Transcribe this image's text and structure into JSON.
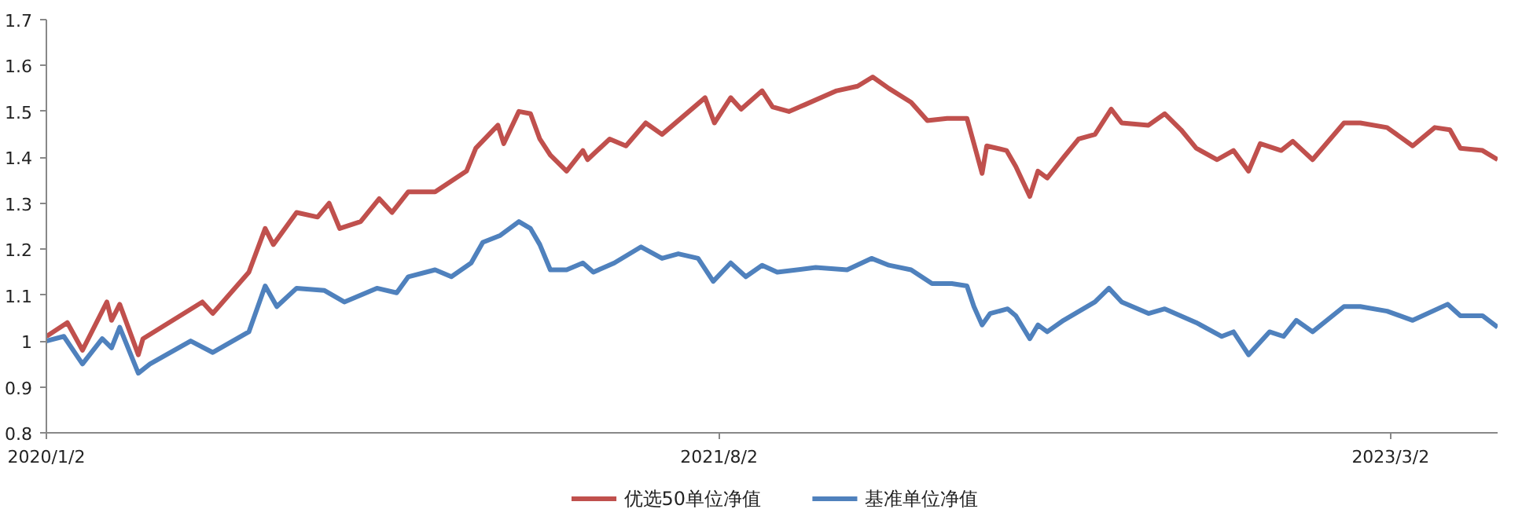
{
  "chart_data": {
    "type": "line",
    "xlim": [
      "2020-01-02",
      "2023-06-02"
    ],
    "xticks": [
      {
        "value": "2020-01-02",
        "label": "2020/1/2"
      },
      {
        "value": "2021-08-02",
        "label": "2021/8/2"
      },
      {
        "value": "2023-03-02",
        "label": "2023/3/2"
      }
    ],
    "ylim": [
      0.8,
      1.7
    ],
    "yticks": [
      0.8,
      0.9,
      1,
      1.1,
      1.2,
      1.3,
      1.4,
      1.5,
      1.6,
      1.7
    ],
    "grid": false,
    "legend": "bottom",
    "line_style": "solid",
    "series": [
      {
        "name": "优选50单位净值",
        "color": "#c0504d",
        "x": [
          "2020-01-02",
          "2020-01-20",
          "2020-02-02",
          "2020-02-23",
          "2020-02-27",
          "2020-03-05",
          "2020-03-21",
          "2020-03-25",
          "2020-05-15",
          "2020-05-24",
          "2020-06-24",
          "2020-07-08",
          "2020-07-15",
          "2020-08-04",
          "2020-08-22",
          "2020-09-01",
          "2020-09-10",
          "2020-09-28",
          "2020-10-14",
          "2020-10-25",
          "2020-11-08",
          "2020-12-01",
          "2020-12-28",
          "2021-01-05",
          "2021-01-24",
          "2021-01-29",
          "2021-02-11",
          "2021-02-21",
          "2021-03-01",
          "2021-03-10",
          "2021-03-24",
          "2021-04-07",
          "2021-04-11",
          "2021-04-30",
          "2021-05-14",
          "2021-05-31",
          "2021-06-14",
          "2021-07-21",
          "2021-07-29",
          "2021-08-12",
          "2021-08-21",
          "2021-09-08",
          "2021-09-17",
          "2021-10-01",
          "2021-10-15",
          "2021-11-11",
          "2021-11-29",
          "2021-12-12",
          "2021-12-26",
          "2022-01-14",
          "2022-01-28",
          "2022-02-14",
          "2022-03-03",
          "2022-03-09",
          "2022-03-16",
          "2022-03-20",
          "2022-04-06",
          "2022-04-14",
          "2022-04-26",
          "2022-05-03",
          "2022-05-11",
          "2022-05-25",
          "2022-06-07",
          "2022-06-21",
          "2022-07-05",
          "2022-07-14",
          "2022-08-06",
          "2022-08-20",
          "2022-09-03",
          "2022-09-16",
          "2022-10-04",
          "2022-10-18",
          "2022-10-31",
          "2022-11-10",
          "2022-11-28",
          "2022-12-08",
          "2022-12-25",
          "2023-01-21",
          "2023-02-04",
          "2023-02-27",
          "2023-03-21",
          "2023-04-09",
          "2023-04-22",
          "2023-05-01",
          "2023-05-20",
          "2023-06-02"
        ],
        "values": [
          1.01,
          1.04,
          0.98,
          1.085,
          1.045,
          1.08,
          0.97,
          1.005,
          1.085,
          1.06,
          1.15,
          1.245,
          1.21,
          1.28,
          1.27,
          1.3,
          1.245,
          1.26,
          1.31,
          1.28,
          1.325,
          1.325,
          1.37,
          1.42,
          1.47,
          1.43,
          1.5,
          1.495,
          1.44,
          1.405,
          1.37,
          1.415,
          1.395,
          1.44,
          1.425,
          1.475,
          1.45,
          1.53,
          1.475,
          1.53,
          1.505,
          1.545,
          1.51,
          1.5,
          1.515,
          1.545,
          1.555,
          1.575,
          1.55,
          1.52,
          1.48,
          1.485,
          1.485,
          1.43,
          1.365,
          1.425,
          1.415,
          1.38,
          1.315,
          1.37,
          1.355,
          1.4,
          1.44,
          1.45,
          1.505,
          1.475,
          1.47,
          1.495,
          1.46,
          1.42,
          1.395,
          1.415,
          1.37,
          1.43,
          1.415,
          1.435,
          1.395,
          1.475,
          1.475,
          1.465,
          1.425,
          1.465,
          1.46,
          1.42,
          1.415,
          1.395
        ]
      },
      {
        "name": "基准单位净值",
        "color": "#4f81bd",
        "x": [
          "2020-01-02",
          "2020-01-17",
          "2020-02-02",
          "2020-02-19",
          "2020-02-27",
          "2020-03-05",
          "2020-03-21",
          "2020-03-31",
          "2020-05-05",
          "2020-05-24",
          "2020-06-24",
          "2020-07-08",
          "2020-07-18",
          "2020-08-04",
          "2020-08-28",
          "2020-09-14",
          "2020-10-12",
          "2020-10-29",
          "2020-11-08",
          "2020-12-01",
          "2020-12-15",
          "2021-01-01",
          "2021-01-11",
          "2021-01-26",
          "2021-02-11",
          "2021-02-21",
          "2021-03-01",
          "2021-03-10",
          "2021-03-24",
          "2021-04-07",
          "2021-04-16",
          "2021-05-04",
          "2021-05-27",
          "2021-06-14",
          "2021-06-28",
          "2021-07-15",
          "2021-07-28",
          "2021-08-12",
          "2021-08-25",
          "2021-09-08",
          "2021-09-21",
          "2021-10-24",
          "2021-11-20",
          "2021-12-11",
          "2021-12-26",
          "2022-01-14",
          "2022-02-01",
          "2022-02-18",
          "2022-03-03",
          "2022-03-09",
          "2022-03-16",
          "2022-03-23",
          "2022-04-07",
          "2022-04-14",
          "2022-04-26",
          "2022-05-03",
          "2022-05-11",
          "2022-05-25",
          "2022-06-21",
          "2022-07-03",
          "2022-07-14",
          "2022-08-06",
          "2022-08-20",
          "2022-09-16",
          "2022-10-08",
          "2022-10-18",
          "2022-10-31",
          "2022-11-18",
          "2022-11-30",
          "2022-12-11",
          "2022-12-25",
          "2023-01-21",
          "2023-02-04",
          "2023-02-27",
          "2023-03-21",
          "2023-04-20",
          "2023-05-01",
          "2023-05-20",
          "2023-06-02"
        ],
        "values": [
          1.0,
          1.01,
          0.95,
          1.005,
          0.985,
          1.03,
          0.93,
          0.95,
          1.0,
          0.975,
          1.02,
          1.12,
          1.075,
          1.115,
          1.11,
          1.085,
          1.115,
          1.105,
          1.14,
          1.155,
          1.14,
          1.17,
          1.215,
          1.23,
          1.26,
          1.245,
          1.21,
          1.155,
          1.155,
          1.17,
          1.15,
          1.17,
          1.205,
          1.18,
          1.19,
          1.18,
          1.13,
          1.17,
          1.14,
          1.165,
          1.15,
          1.16,
          1.155,
          1.18,
          1.165,
          1.155,
          1.125,
          1.125,
          1.12,
          1.075,
          1.035,
          1.06,
          1.07,
          1.055,
          1.005,
          1.035,
          1.02,
          1.045,
          1.085,
          1.115,
          1.085,
          1.06,
          1.07,
          1.04,
          1.01,
          1.02,
          0.97,
          1.02,
          1.01,
          1.045,
          1.02,
          1.075,
          1.075,
          1.065,
          1.045,
          1.08,
          1.055,
          1.055,
          1.03
        ]
      }
    ]
  }
}
